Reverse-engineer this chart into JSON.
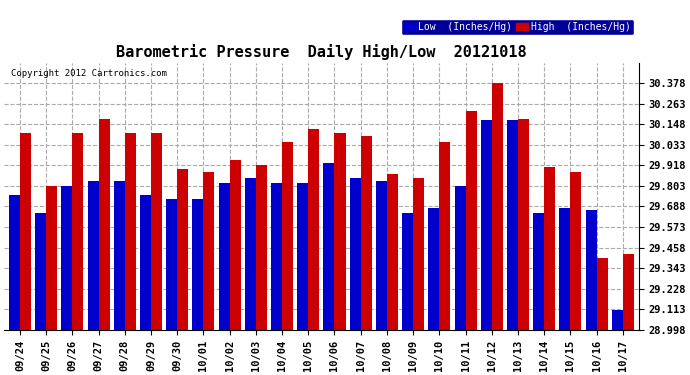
{
  "title": "Barometric Pressure  Daily High/Low  20121018",
  "copyright": "Copyright 2012 Cartronics.com",
  "dates": [
    "09/24",
    "09/25",
    "09/26",
    "09/27",
    "09/28",
    "09/29",
    "09/30",
    "10/01",
    "10/02",
    "10/03",
    "10/04",
    "10/05",
    "10/06",
    "10/07",
    "10/08",
    "10/09",
    "10/10",
    "10/11",
    "10/12",
    "10/13",
    "10/14",
    "10/15",
    "10/16",
    "10/17"
  ],
  "low_values": [
    29.75,
    29.65,
    29.8,
    29.83,
    29.83,
    29.75,
    29.73,
    29.73,
    29.82,
    29.85,
    29.82,
    29.82,
    29.93,
    29.85,
    29.83,
    29.65,
    29.68,
    29.8,
    30.17,
    30.17,
    29.65,
    29.68,
    29.67,
    29.11
  ],
  "high_values": [
    30.1,
    29.8,
    30.1,
    30.18,
    30.1,
    30.1,
    29.9,
    29.88,
    29.95,
    29.92,
    30.05,
    30.12,
    30.1,
    30.08,
    29.87,
    29.85,
    30.05,
    30.22,
    30.38,
    30.18,
    29.91,
    29.88,
    29.4,
    29.42
  ],
  "bar_low_color": "#0000cc",
  "bar_high_color": "#cc0000",
  "background_color": "#ffffff",
  "plot_bg_color": "#ffffff",
  "grid_color": "#aaaaaa",
  "title_fontsize": 11,
  "ylim_min": 28.998,
  "ylim_max": 30.493,
  "yticks": [
    28.998,
    29.113,
    29.228,
    29.343,
    29.458,
    29.573,
    29.688,
    29.803,
    29.918,
    30.033,
    30.148,
    30.263,
    30.378
  ],
  "legend_low_label": "Low  (Inches/Hg)",
  "legend_high_label": "High  (Inches/Hg)",
  "bar_width": 0.42,
  "bar_gap": 0.0
}
